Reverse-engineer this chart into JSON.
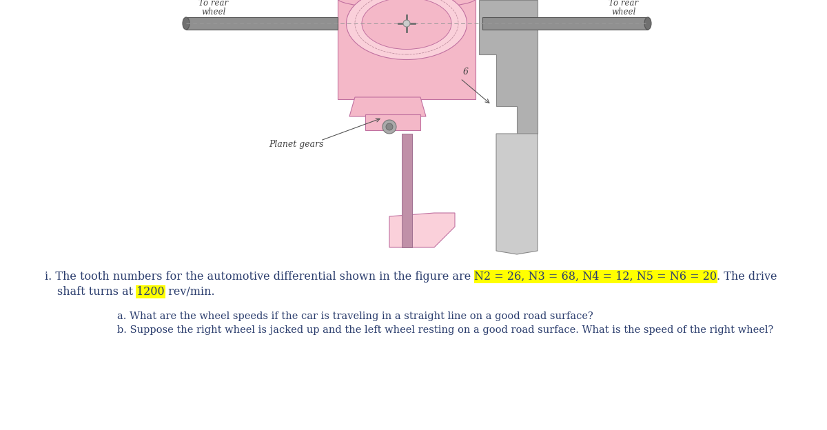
{
  "bg_color": "#ffffff",
  "main_text_line1_pre": "i. The tooth numbers for the automotive differential shown in the figure are ",
  "highlight1_text": "N2 = 26, N3 = 68, N4 = 12, N5 = N6 = 20",
  "main_text_line1_post": ". The drive",
  "main_text_line2_pre": "shaft turns at ",
  "highlight2_text": "1200",
  "main_text_line2_post": " rev/min.",
  "sub_a": "a. What are the wheel speeds if the car is traveling in a straight line on a good road surface?",
  "sub_b": "b. Suppose the right wheel is jacked up and the left wheel resting on a good road surface. What is the speed of the right wheel?",
  "label_left": "To rear\nwheel",
  "label_right": "To rear\nwheel",
  "label_planet": "Planet gears",
  "label_6": "6",
  "highlight_color": "#ffff00",
  "text_color": "#2c3e6e",
  "diagram_text_color": "#444444",
  "shaft_color": "#888888",
  "shaft_edge": "#555555",
  "pink_main": "#f4b8c8",
  "pink_dark": "#e890a8",
  "pink_light": "#fad0da",
  "gray_main": "#b0b0b0",
  "gray_dark": "#888888",
  "gray_light": "#cccccc"
}
